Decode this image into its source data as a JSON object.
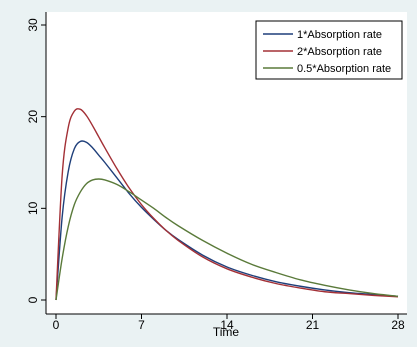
{
  "chart_data": {
    "type": "line",
    "title": "",
    "xlabel": "Time",
    "ylabel": "",
    "xlim": [
      0,
      28
    ],
    "ylim": [
      0,
      30
    ],
    "xticks": [
      0,
      7,
      14,
      21,
      28
    ],
    "yticks": [
      0,
      10,
      20,
      30
    ],
    "grid": false,
    "legend_position": "top-right",
    "x": [
      0,
      0.5,
      1,
      1.5,
      2,
      2.5,
      3,
      3.5,
      4,
      5,
      6,
      7,
      8,
      9,
      10,
      12,
      14,
      16,
      18,
      20,
      22,
      24,
      26,
      28
    ],
    "series": [
      {
        "name": "1*Absorption rate",
        "color": "#1f3f7a",
        "values": [
          0,
          9.0,
          14.0,
          16.5,
          17.3,
          17.2,
          16.6,
          15.8,
          15.0,
          13.3,
          11.6,
          10.1,
          8.8,
          7.6,
          6.6,
          4.9,
          3.6,
          2.7,
          2.0,
          1.5,
          1.1,
          0.8,
          0.6,
          0.4
        ]
      },
      {
        "name": "2*Absorption rate",
        "color": "#a33036",
        "values": [
          0,
          13.5,
          18.8,
          20.6,
          20.8,
          20.1,
          19.0,
          17.8,
          16.6,
          14.3,
          12.2,
          10.4,
          8.9,
          7.6,
          6.5,
          4.7,
          3.4,
          2.5,
          1.8,
          1.3,
          0.9,
          0.7,
          0.5,
          0.35
        ]
      },
      {
        "name": "0.5*Absorption rate",
        "color": "#5a7a3a",
        "values": [
          0,
          4.5,
          8.0,
          10.4,
          11.8,
          12.7,
          13.1,
          13.2,
          13.1,
          12.6,
          11.8,
          10.9,
          10.0,
          9.0,
          8.1,
          6.5,
          5.1,
          3.9,
          3.0,
          2.2,
          1.6,
          1.1,
          0.7,
          0.4
        ]
      }
    ]
  }
}
